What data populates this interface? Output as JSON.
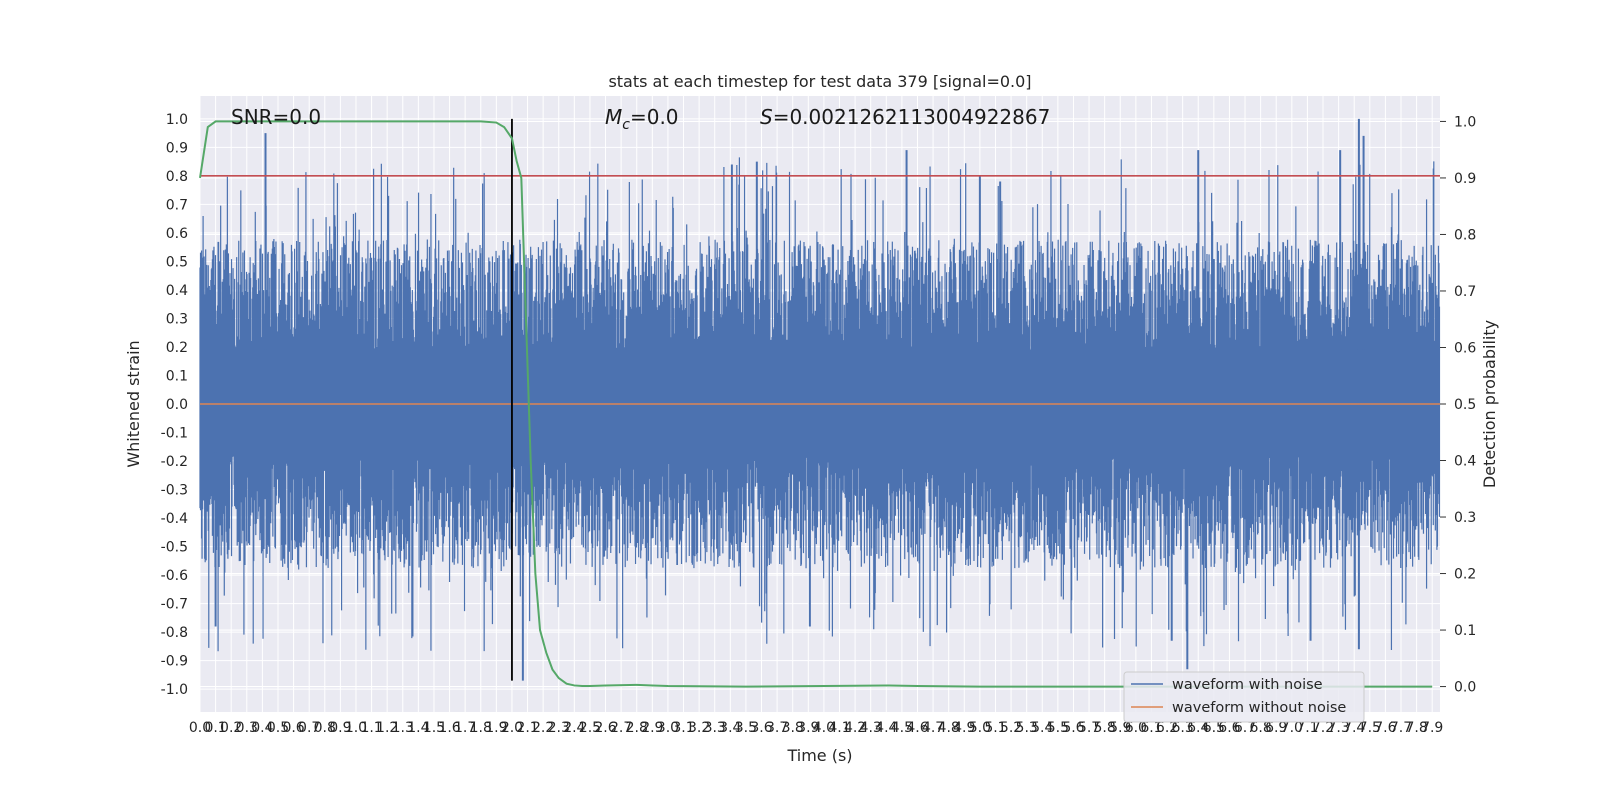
{
  "chart_data": {
    "type": "line",
    "title": "stats at each timestep for test data 379 [signal=0.0]",
    "xlabel": "Time (s)",
    "ylabel": "Whitened strain",
    "y2label": "Detection probability",
    "xlim": [
      0.0,
      7.95
    ],
    "ylim": [
      -1.08,
      1.08
    ],
    "y2lim": [
      -0.045,
      1.045
    ],
    "x_ticks": [
      0.0,
      0.1,
      0.2,
      0.3,
      0.4,
      0.5,
      0.6,
      0.7,
      0.8,
      0.9,
      1.0,
      1.1,
      1.2,
      1.3,
      1.4,
      1.5,
      1.6,
      1.7,
      1.8,
      1.9,
      2.0,
      2.1,
      2.2,
      2.3,
      2.4,
      2.5,
      2.6,
      2.7,
      2.8,
      2.9,
      3.0,
      3.1,
      3.2,
      3.3,
      3.4,
      3.5,
      3.6,
      3.7,
      3.8,
      3.9,
      4.0,
      4.1,
      4.2,
      4.3,
      4.4,
      4.5,
      4.6,
      4.7,
      4.8,
      4.9,
      5.0,
      5.1,
      5.2,
      5.3,
      5.4,
      5.5,
      5.6,
      5.7,
      5.8,
      5.9,
      6.0,
      6.1,
      6.2,
      6.3,
      6.4,
      6.5,
      6.6,
      6.7,
      6.8,
      6.9,
      7.0,
      7.1,
      7.2,
      7.3,
      7.4,
      7.5,
      7.6,
      7.7,
      7.8,
      7.9
    ],
    "y_ticks": [
      "1.0",
      "0.9",
      "0.8",
      "0.7",
      "0.6",
      "0.5",
      "0.4",
      "0.3",
      "0.2",
      "0.1",
      "0.0",
      "-0.1",
      "-0.2",
      "-0.3",
      "-0.4",
      "-0.5",
      "-0.6",
      "-0.7",
      "-0.8",
      "-0.9",
      "-1.0"
    ],
    "y2_ticks": [
      "1.0",
      "0.9",
      "0.8",
      "0.7",
      "0.6",
      "0.5",
      "0.4",
      "0.3",
      "0.2",
      "0.1",
      "0.0"
    ],
    "grid": true,
    "legend_placement": "lower-right",
    "annotations": {
      "snr": "SNR=0.0",
      "mc_symbol": "M",
      "mc_sub": "c",
      "mc_value": "=0.0",
      "s_symbol": "S",
      "s_value": "=0.0021262113004922867"
    },
    "threshold_line": {
      "axis": "left",
      "y": 0.8,
      "color": "#c44e52"
    },
    "marker_line": {
      "x": 2.0,
      "y_from": -0.97,
      "y_to": 1.0,
      "color": "#000000"
    },
    "series": [
      {
        "name": "waveform with noise",
        "color": "#4c72b0",
        "axis": "left",
        "spikes": [
          [
            0.42,
            0.95
          ],
          [
            3.41,
            0.84
          ],
          [
            3.57,
            0.85
          ],
          [
            4.53,
            0.89
          ],
          [
            5.0,
            0.8
          ],
          [
            5.13,
            0.78
          ],
          [
            6.4,
            0.89
          ],
          [
            7.31,
            0.89
          ],
          [
            7.43,
            1.0
          ],
          [
            7.46,
            0.94
          ],
          [
            2.07,
            -0.97
          ],
          [
            6.33,
            -0.93
          ],
          [
            6.23,
            -0.83
          ],
          [
            7.43,
            -0.86
          ],
          [
            7.12,
            -0.83
          ],
          [
            0.1,
            -0.78
          ],
          [
            3.91,
            -0.78
          ],
          [
            1.48,
            -0.06
          ],
          [
            2.05,
            -0.45
          ]
        ],
        "noise_envelope": 0.55
      },
      {
        "name": "waveform without noise",
        "color": "#dd8452",
        "axis": "left",
        "x": [
          0.0,
          7.95
        ],
        "y": [
          0.0,
          0.0
        ]
      },
      {
        "name": "detection probability",
        "color": "#55a868",
        "axis": "right",
        "x": [
          0.0,
          0.05,
          0.1,
          0.2,
          0.5,
          1.0,
          1.5,
          1.8,
          1.9,
          1.95,
          2.0,
          2.03,
          2.06,
          2.09,
          2.12,
          2.15,
          2.18,
          2.22,
          2.26,
          2.3,
          2.35,
          2.4,
          2.45,
          2.5,
          2.6,
          2.8,
          2.9,
          3.0,
          3.5,
          4.0,
          4.4,
          4.6,
          5.0,
          6.0,
          7.0,
          7.9
        ],
        "y": [
          0.9,
          0.99,
          1.0,
          1.0,
          1.0,
          1.0,
          1.0,
          1.0,
          0.998,
          0.99,
          0.97,
          0.93,
          0.9,
          0.65,
          0.4,
          0.2,
          0.1,
          0.06,
          0.03,
          0.015,
          0.005,
          0.002,
          0.001,
          0.001,
          0.002,
          0.003,
          0.002,
          0.001,
          0.0,
          0.001,
          0.002,
          0.001,
          0.0,
          0.0,
          0.0,
          0.0
        ]
      }
    ]
  }
}
